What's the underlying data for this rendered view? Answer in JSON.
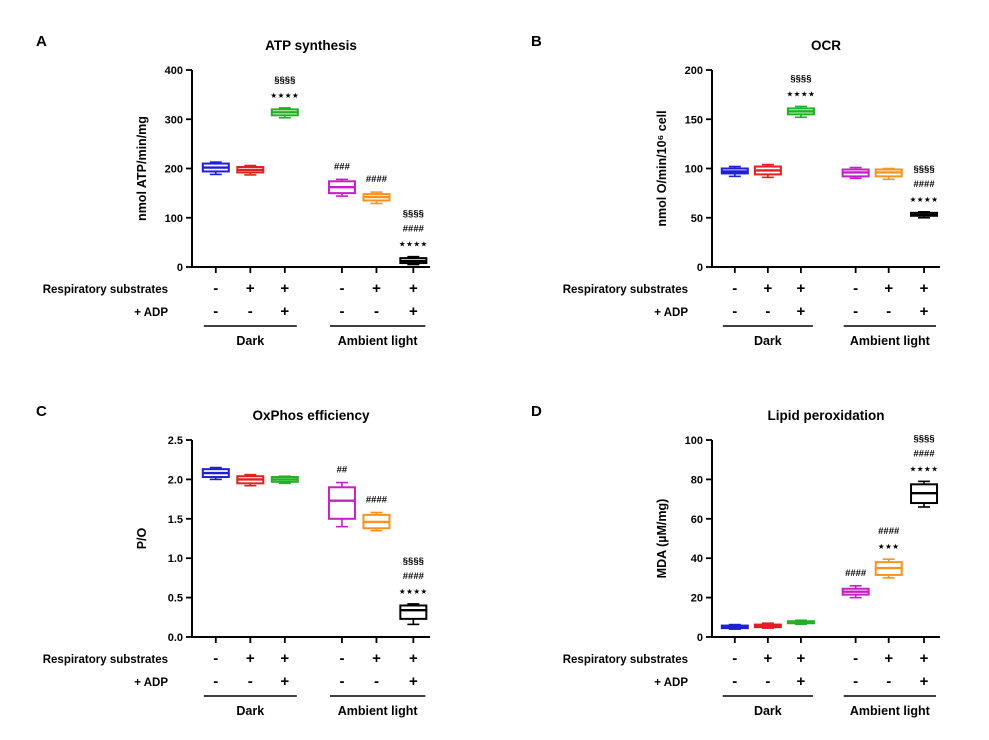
{
  "shared_x_axis": {
    "condition_rows": [
      {
        "label": "Respiratory substrates",
        "values": [
          "-",
          "+",
          "+",
          "-",
          "+",
          "+"
        ]
      },
      {
        "label": "+ ADP",
        "values": [
          "-",
          "-",
          "+",
          "-",
          "-",
          "+"
        ]
      }
    ],
    "groups": [
      {
        "label": "Dark",
        "from": 0,
        "to": 2
      },
      {
        "label": "Ambient light",
        "from": 3,
        "to": 5
      }
    ]
  },
  "series_colors": [
    "#2020D0",
    "#E02020",
    "#22B022",
    "#C71FC7",
    "#F7941E",
    "#000000"
  ],
  "chart_data": [
    {
      "panel_letter": "A",
      "type": "box",
      "title": "ATP synthesis",
      "ylabel": "nmol ATP/min/mg",
      "ylim": [
        0,
        400
      ],
      "yticks": [
        "0",
        "100",
        "200",
        "300",
        "400"
      ],
      "layout": {
        "plot_left": 192,
        "plot_right": 430
      },
      "boxes": [
        {
          "whisker_low": 188,
          "q1": 194,
          "median": 202,
          "q3": 210,
          "whisker_high": 213,
          "sig": []
        },
        {
          "whisker_low": 187,
          "q1": 192,
          "median": 197,
          "q3": 203,
          "whisker_high": 206,
          "sig": []
        },
        {
          "whisker_low": 303,
          "q1": 308,
          "median": 314,
          "q3": 320,
          "whisker_high": 323,
          "sig": [
            "§§§§",
            "****"
          ]
        },
        {
          "whisker_low": 144,
          "q1": 150,
          "median": 162,
          "q3": 174,
          "whisker_high": 178,
          "sig": [
            "###"
          ]
        },
        {
          "whisker_low": 129,
          "q1": 135,
          "median": 142,
          "q3": 148,
          "whisker_high": 152,
          "sig": [
            "####"
          ]
        },
        {
          "whisker_low": 5,
          "q1": 8,
          "median": 12,
          "q3": 18,
          "whisker_high": 21,
          "sig": [
            "§§§§",
            "####",
            "****"
          ]
        }
      ]
    },
    {
      "panel_letter": "B",
      "type": "box",
      "title": "OCR",
      "ylabel": "nmol O/min/10⁶ cell",
      "ylim": [
        0,
        200
      ],
      "yticks": [
        "0",
        "50",
        "100",
        "150",
        "200"
      ],
      "layout": {
        "plot_left": 217,
        "plot_right": 445
      },
      "boxes": [
        {
          "whisker_low": 92,
          "q1": 95,
          "median": 97,
          "q3": 100,
          "whisker_high": 102,
          "sig": []
        },
        {
          "whisker_low": 91,
          "q1": 94,
          "median": 98,
          "q3": 102,
          "whisker_high": 104,
          "sig": []
        },
        {
          "whisker_low": 152,
          "q1": 155,
          "median": 158,
          "q3": 161,
          "whisker_high": 163,
          "sig": [
            "§§§§",
            "****"
          ]
        },
        {
          "whisker_low": 90,
          "q1": 92,
          "median": 96,
          "q3": 99,
          "whisker_high": 101,
          "sig": []
        },
        {
          "whisker_low": 89,
          "q1": 92,
          "median": 96,
          "q3": 99,
          "whisker_high": 100,
          "sig": []
        },
        {
          "whisker_low": 50,
          "q1": 52,
          "median": 53,
          "q3": 55,
          "whisker_high": 56,
          "sig": [
            "§§§§",
            "####",
            "****"
          ]
        }
      ]
    },
    {
      "panel_letter": "C",
      "type": "box",
      "title": "OxPhos efficiency",
      "ylabel": "P/O",
      "ylim": [
        0,
        2.5
      ],
      "yticks": [
        "0.0",
        "0.5",
        "1.0",
        "1.5",
        "2.0",
        "2.5"
      ],
      "layout": {
        "plot_left": 192,
        "plot_right": 430
      },
      "boxes": [
        {
          "whisker_low": 2.0,
          "q1": 2.03,
          "median": 2.08,
          "q3": 2.13,
          "whisker_high": 2.15,
          "sig": []
        },
        {
          "whisker_low": 1.92,
          "q1": 1.95,
          "median": 2.0,
          "q3": 2.04,
          "whisker_high": 2.06,
          "sig": []
        },
        {
          "whisker_low": 1.95,
          "q1": 1.97,
          "median": 2.0,
          "q3": 2.03,
          "whisker_high": 2.04,
          "sig": []
        },
        {
          "whisker_low": 1.4,
          "q1": 1.5,
          "median": 1.73,
          "q3": 1.9,
          "whisker_high": 1.96,
          "sig": [
            "##"
          ]
        },
        {
          "whisker_low": 1.35,
          "q1": 1.38,
          "median": 1.46,
          "q3": 1.55,
          "whisker_high": 1.58,
          "sig": [
            "####"
          ]
        },
        {
          "whisker_low": 0.16,
          "q1": 0.23,
          "median": 0.34,
          "q3": 0.4,
          "whisker_high": 0.42,
          "sig": [
            "§§§§",
            "####",
            "****"
          ]
        }
      ]
    },
    {
      "panel_letter": "D",
      "type": "box",
      "title": "Lipid peroxidation",
      "ylabel": "MDA (µM/mg)",
      "ylim": [
        0,
        100
      ],
      "yticks": [
        "0",
        "20",
        "40",
        "60",
        "80",
        "100"
      ],
      "layout": {
        "plot_left": 217,
        "plot_right": 445
      },
      "boxes": [
        {
          "whisker_low": 4,
          "q1": 4.5,
          "median": 5,
          "q3": 5.8,
          "whisker_high": 6.3,
          "sig": []
        },
        {
          "whisker_low": 4.5,
          "q1": 5,
          "median": 5.5,
          "q3": 6.3,
          "whisker_high": 7,
          "sig": []
        },
        {
          "whisker_low": 6.5,
          "q1": 7,
          "median": 7.5,
          "q3": 8,
          "whisker_high": 8.5,
          "sig": []
        },
        {
          "whisker_low": 20,
          "q1": 21.5,
          "median": 23,
          "q3": 24.5,
          "whisker_high": 26,
          "sig": [
            "####"
          ]
        },
        {
          "whisker_low": 30,
          "q1": 31.5,
          "median": 35,
          "q3": 38,
          "whisker_high": 39.5,
          "sig": [
            "####",
            "***"
          ]
        },
        {
          "whisker_low": 66,
          "q1": 68,
          "median": 73,
          "q3": 77.5,
          "whisker_high": 79,
          "sig": [
            "§§§§",
            "####",
            "****"
          ]
        }
      ]
    }
  ]
}
